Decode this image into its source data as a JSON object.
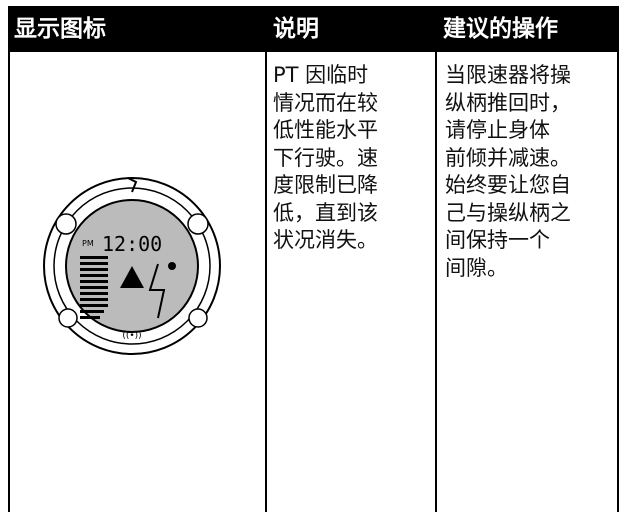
{
  "table": {
    "header": [
      "显示图标",
      "说明",
      "建议的操作"
    ],
    "description_lines": [
      "PT 因临时",
      "情况而在较",
      "低性能水平",
      "下行驶。速",
      "度限制已降",
      "低，直到该",
      "状况消失。"
    ],
    "action_lines": [
      "当限速器将操",
      "纵柄推回时，",
      "请停止身体",
      "前倾并减速。",
      "始终要让您自",
      "己与操纵柄之",
      "间保持一个",
      "间隙。"
    ],
    "icon": {
      "time": "12:00",
      "period": "PM"
    }
  }
}
